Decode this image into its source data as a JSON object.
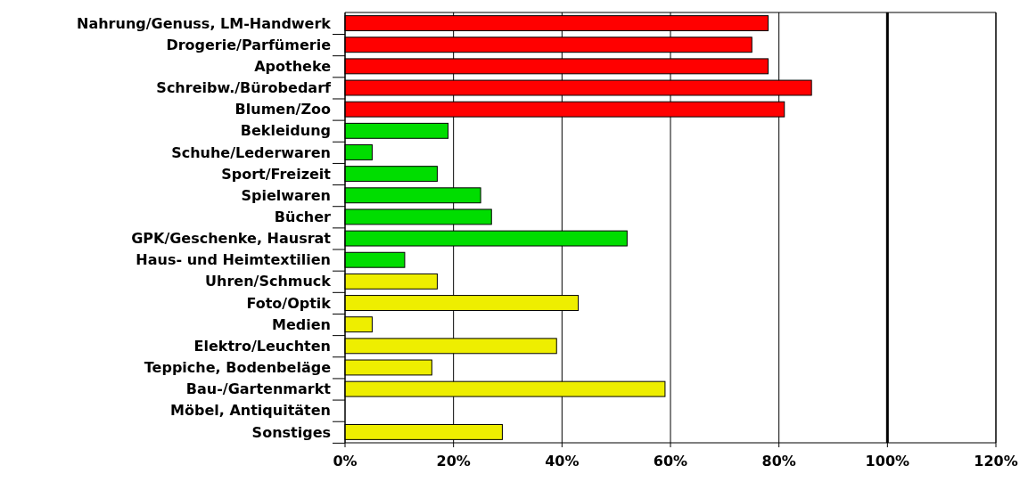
{
  "chart_data": {
    "type": "bar",
    "orientation": "horizontal",
    "categories": [
      "Nahrung/Genuss, LM-Handwerk",
      "Drogerie/Parfümerie",
      "Apotheke",
      "Schreibw./Bürobedarf",
      "Blumen/Zoo",
      "Bekleidung",
      "Schuhe/Lederwaren",
      "Sport/Freizeit",
      "Spielwaren",
      "Bücher",
      "GPK/Geschenke, Hausrat",
      "Haus- und Heimtextilien",
      "Uhren/Schmuck",
      "Foto/Optik",
      "Medien",
      "Elektro/Leuchten",
      "Teppiche, Bodenbeläge",
      "Bau-/Gartenmarkt",
      "Möbel, Antiquitäten",
      "Sonstiges"
    ],
    "values": [
      78,
      75,
      78,
      86,
      81,
      19,
      5,
      17,
      25,
      27,
      52,
      11,
      17,
      43,
      5,
      39,
      16,
      59,
      0,
      29
    ],
    "colors": [
      "#ff0000",
      "#ff0000",
      "#ff0000",
      "#ff0000",
      "#ff0000",
      "#00dd00",
      "#00dd00",
      "#00dd00",
      "#00dd00",
      "#00dd00",
      "#00dd00",
      "#00dd00",
      "#eeee00",
      "#eeee00",
      "#eeee00",
      "#eeee00",
      "#eeee00",
      "#eeee00",
      "#eeee00",
      "#eeee00"
    ],
    "xlim": [
      0,
      120
    ],
    "xticks": [
      {
        "value": 0,
        "label": "0%"
      },
      {
        "value": 20,
        "label": "20%"
      },
      {
        "value": 40,
        "label": "40%"
      },
      {
        "value": 60,
        "label": "60%"
      },
      {
        "value": 80,
        "label": "80%"
      },
      {
        "value": 100,
        "label": "100%"
      },
      {
        "value": 120,
        "label": "120%"
      }
    ],
    "grid": "x",
    "ref_lines": [
      {
        "axis": "x",
        "value": 100,
        "color": "#000000"
      }
    ]
  }
}
